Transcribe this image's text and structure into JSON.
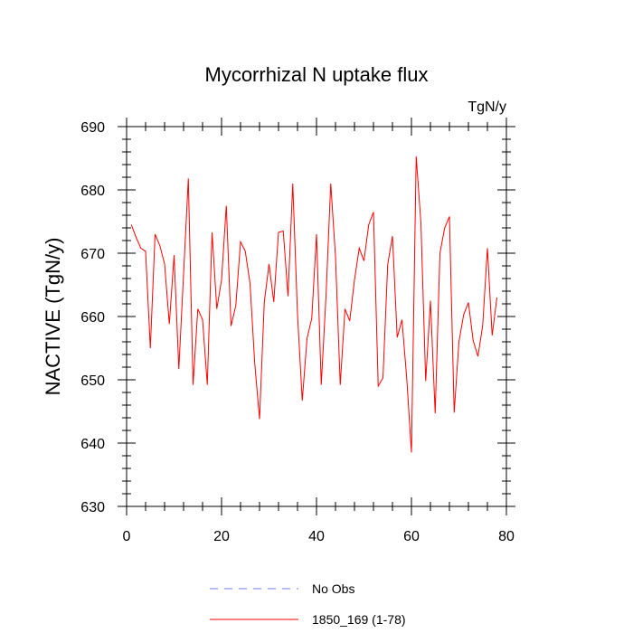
{
  "chart_data": {
    "type": "line",
    "title": "Mycorrhizal N uptake flux",
    "units": "TgN/y",
    "ylabel": "NACTIVE  (TgN/y)",
    "xlabel": "",
    "xlim": [
      0,
      80
    ],
    "ylim": [
      630,
      690
    ],
    "x_ticks": [
      0,
      20,
      40,
      60,
      80
    ],
    "y_ticks": [
      630,
      640,
      650,
      660,
      670,
      680,
      690
    ],
    "x_tick_labels": [
      "0",
      "20",
      "40",
      "60",
      "80"
    ],
    "y_tick_labels": [
      "630",
      "640",
      "650",
      "660",
      "670",
      "680",
      "690"
    ],
    "grid": false,
    "legend_position": "bottom",
    "legend": [
      {
        "label": "No Obs",
        "color": "#7777ff",
        "style": "dashed"
      },
      {
        "label": "1850_169 (1-78)",
        "color": "#ff0000",
        "style": "solid"
      }
    ],
    "series": [
      {
        "name": "1850_169 (1-78)",
        "color": "#ff0000",
        "x": [
          1,
          2,
          3,
          4,
          5,
          6,
          7,
          8,
          9,
          10,
          11,
          12,
          13,
          14,
          15,
          16,
          17,
          18,
          19,
          20,
          21,
          22,
          23,
          24,
          25,
          26,
          27,
          28,
          29,
          30,
          31,
          32,
          33,
          34,
          35,
          36,
          37,
          38,
          39,
          40,
          41,
          42,
          43,
          44,
          45,
          46,
          47,
          48,
          49,
          50,
          51,
          52,
          53,
          54,
          55,
          56,
          57,
          58,
          59,
          60,
          61,
          62,
          63,
          64,
          65,
          66,
          67,
          68,
          69,
          70,
          71,
          72,
          73,
          74,
          75,
          76,
          77,
          78
        ],
        "values": [
          674.5,
          672.5,
          670.8,
          670.3,
          655,
          673,
          671.2,
          668.3,
          658.8,
          669.7,
          651.7,
          666.7,
          681.8,
          649.2,
          661.2,
          659.5,
          649.2,
          673.3,
          661.2,
          665.8,
          677.5,
          658.5,
          661.7,
          671.8,
          670.3,
          665.2,
          652.5,
          643.8,
          662.2,
          668.3,
          662.3,
          673.3,
          673.5,
          663.2,
          681,
          660.3,
          646.7,
          656.5,
          659.7,
          673,
          649.2,
          663.2,
          681,
          669.5,
          649.2,
          661.2,
          659.3,
          665.8,
          670.8,
          668.8,
          674.5,
          676.5,
          649,
          650.3,
          668.2,
          672.7,
          656.7,
          659.5,
          650.3,
          638.5,
          685.3,
          674.7,
          649.8,
          662.5,
          644.7,
          670,
          674,
          675.8,
          644.8,
          656,
          660.3,
          662.2,
          656.2,
          653.7,
          658.5,
          670.8,
          657,
          663
        ]
      }
    ]
  }
}
